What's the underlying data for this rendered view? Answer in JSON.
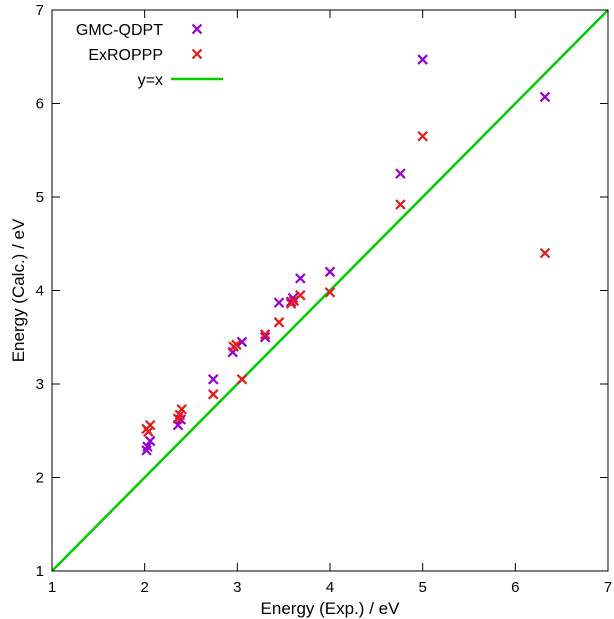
{
  "chart_data": {
    "type": "scatter",
    "title": "",
    "xlabel": "Energy (Exp.) / eV",
    "ylabel": "Energy (Calc.) / eV",
    "xlim": [
      1,
      7
    ],
    "ylim": [
      1,
      7
    ],
    "xticks": [
      1,
      2,
      3,
      4,
      5,
      6,
      7
    ],
    "yticks": [
      1,
      2,
      3,
      4,
      5,
      6,
      7
    ],
    "grid": false,
    "legend_position": "top-left",
    "series": [
      {
        "name": "GMC-QDPT",
        "marker": "x",
        "color": "#9400d3",
        "points": [
          [
            2.02,
            2.29
          ],
          [
            2.03,
            2.33
          ],
          [
            2.06,
            2.39
          ],
          [
            2.36,
            2.56
          ],
          [
            2.39,
            2.62
          ],
          [
            2.74,
            3.05
          ],
          [
            2.95,
            3.34
          ],
          [
            3.05,
            3.45
          ],
          [
            3.3,
            3.5
          ],
          [
            3.45,
            3.87
          ],
          [
            3.58,
            3.88
          ],
          [
            3.6,
            3.92
          ],
          [
            3.68,
            4.13
          ],
          [
            4.0,
            4.2
          ],
          [
            4.76,
            5.25
          ],
          [
            5.0,
            6.47
          ],
          [
            6.32,
            6.07
          ]
        ]
      },
      {
        "name": "ExROPPP",
        "marker": "x",
        "color": "#e51a1a",
        "points": [
          [
            2.02,
            2.52
          ],
          [
            2.04,
            2.49
          ],
          [
            2.06,
            2.56
          ],
          [
            2.36,
            2.63
          ],
          [
            2.38,
            2.67
          ],
          [
            2.4,
            2.73
          ],
          [
            2.74,
            2.89
          ],
          [
            2.96,
            3.4
          ],
          [
            2.99,
            3.42
          ],
          [
            3.05,
            3.05
          ],
          [
            3.3,
            3.53
          ],
          [
            3.45,
            3.66
          ],
          [
            3.58,
            3.86
          ],
          [
            3.61,
            3.89
          ],
          [
            3.68,
            3.95
          ],
          [
            4.0,
            3.98
          ],
          [
            4.76,
            4.92
          ],
          [
            5.0,
            5.65
          ],
          [
            6.32,
            4.4
          ]
        ]
      },
      {
        "name": "y=x",
        "type": "line",
        "color": "#00cc00",
        "points": [
          [
            1,
            1
          ],
          [
            7,
            7
          ]
        ]
      }
    ]
  }
}
